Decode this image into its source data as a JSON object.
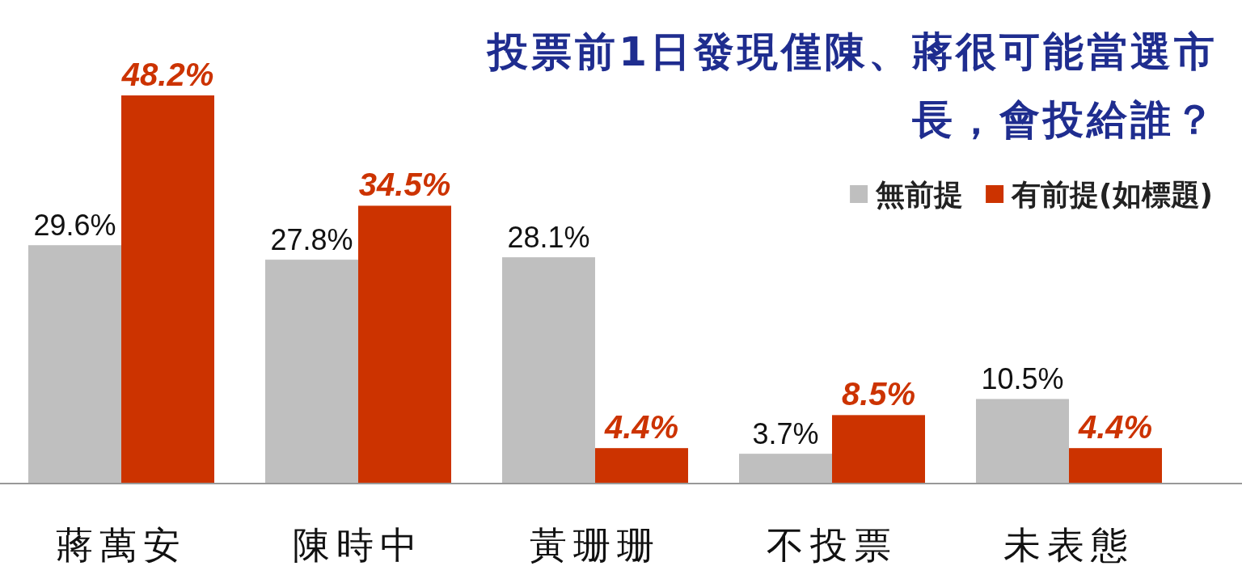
{
  "chart_data": {
    "type": "bar",
    "title": "投票前1日發現僅陳、蔣很可能當選市長，會投給誰？",
    "categories": [
      "蔣萬安",
      "陳時中",
      "黃珊珊",
      "不投票",
      "未表態"
    ],
    "series": [
      {
        "name": "無前提",
        "color": "#bfbfbf",
        "values": [
          29.6,
          27.8,
          28.1,
          3.7,
          10.5
        ],
        "value_labels": [
          "29.6%",
          "27.8%",
          "28.1%",
          "3.7%",
          "10.5%"
        ]
      },
      {
        "name": "有前提(如標題)",
        "color": "#cc3300",
        "values": [
          48.2,
          34.5,
          4.4,
          8.5,
          4.4
        ],
        "value_labels": [
          "48.2%",
          "34.5%",
          "4.4%",
          "8.5%",
          "4.4%"
        ]
      }
    ],
    "legend": "top right",
    "grid": false
  }
}
